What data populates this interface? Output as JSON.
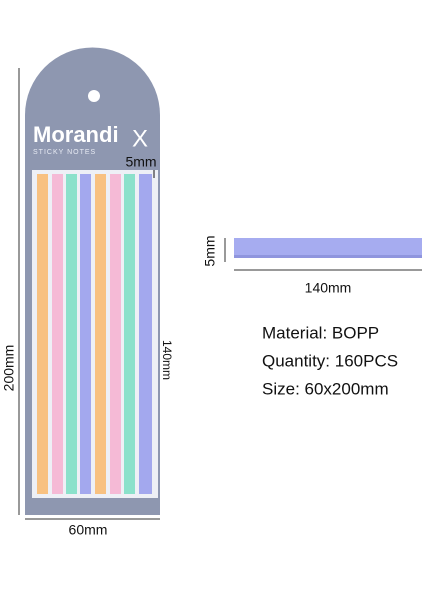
{
  "package": {
    "brand": "Morandi",
    "subtitle": "STICKY NOTES",
    "logo": "X"
  },
  "dimensions": {
    "strip_width_on_pack": "5mm",
    "strip_length_on_pack": "140mm",
    "pack_height": "200mm",
    "pack_width": "60mm",
    "strip_width": "5mm",
    "strip_length": "140mm"
  },
  "specs": [
    "Material: BOPP",
    "Quantity: 160PCS",
    "Size: 60x200mm"
  ]
}
